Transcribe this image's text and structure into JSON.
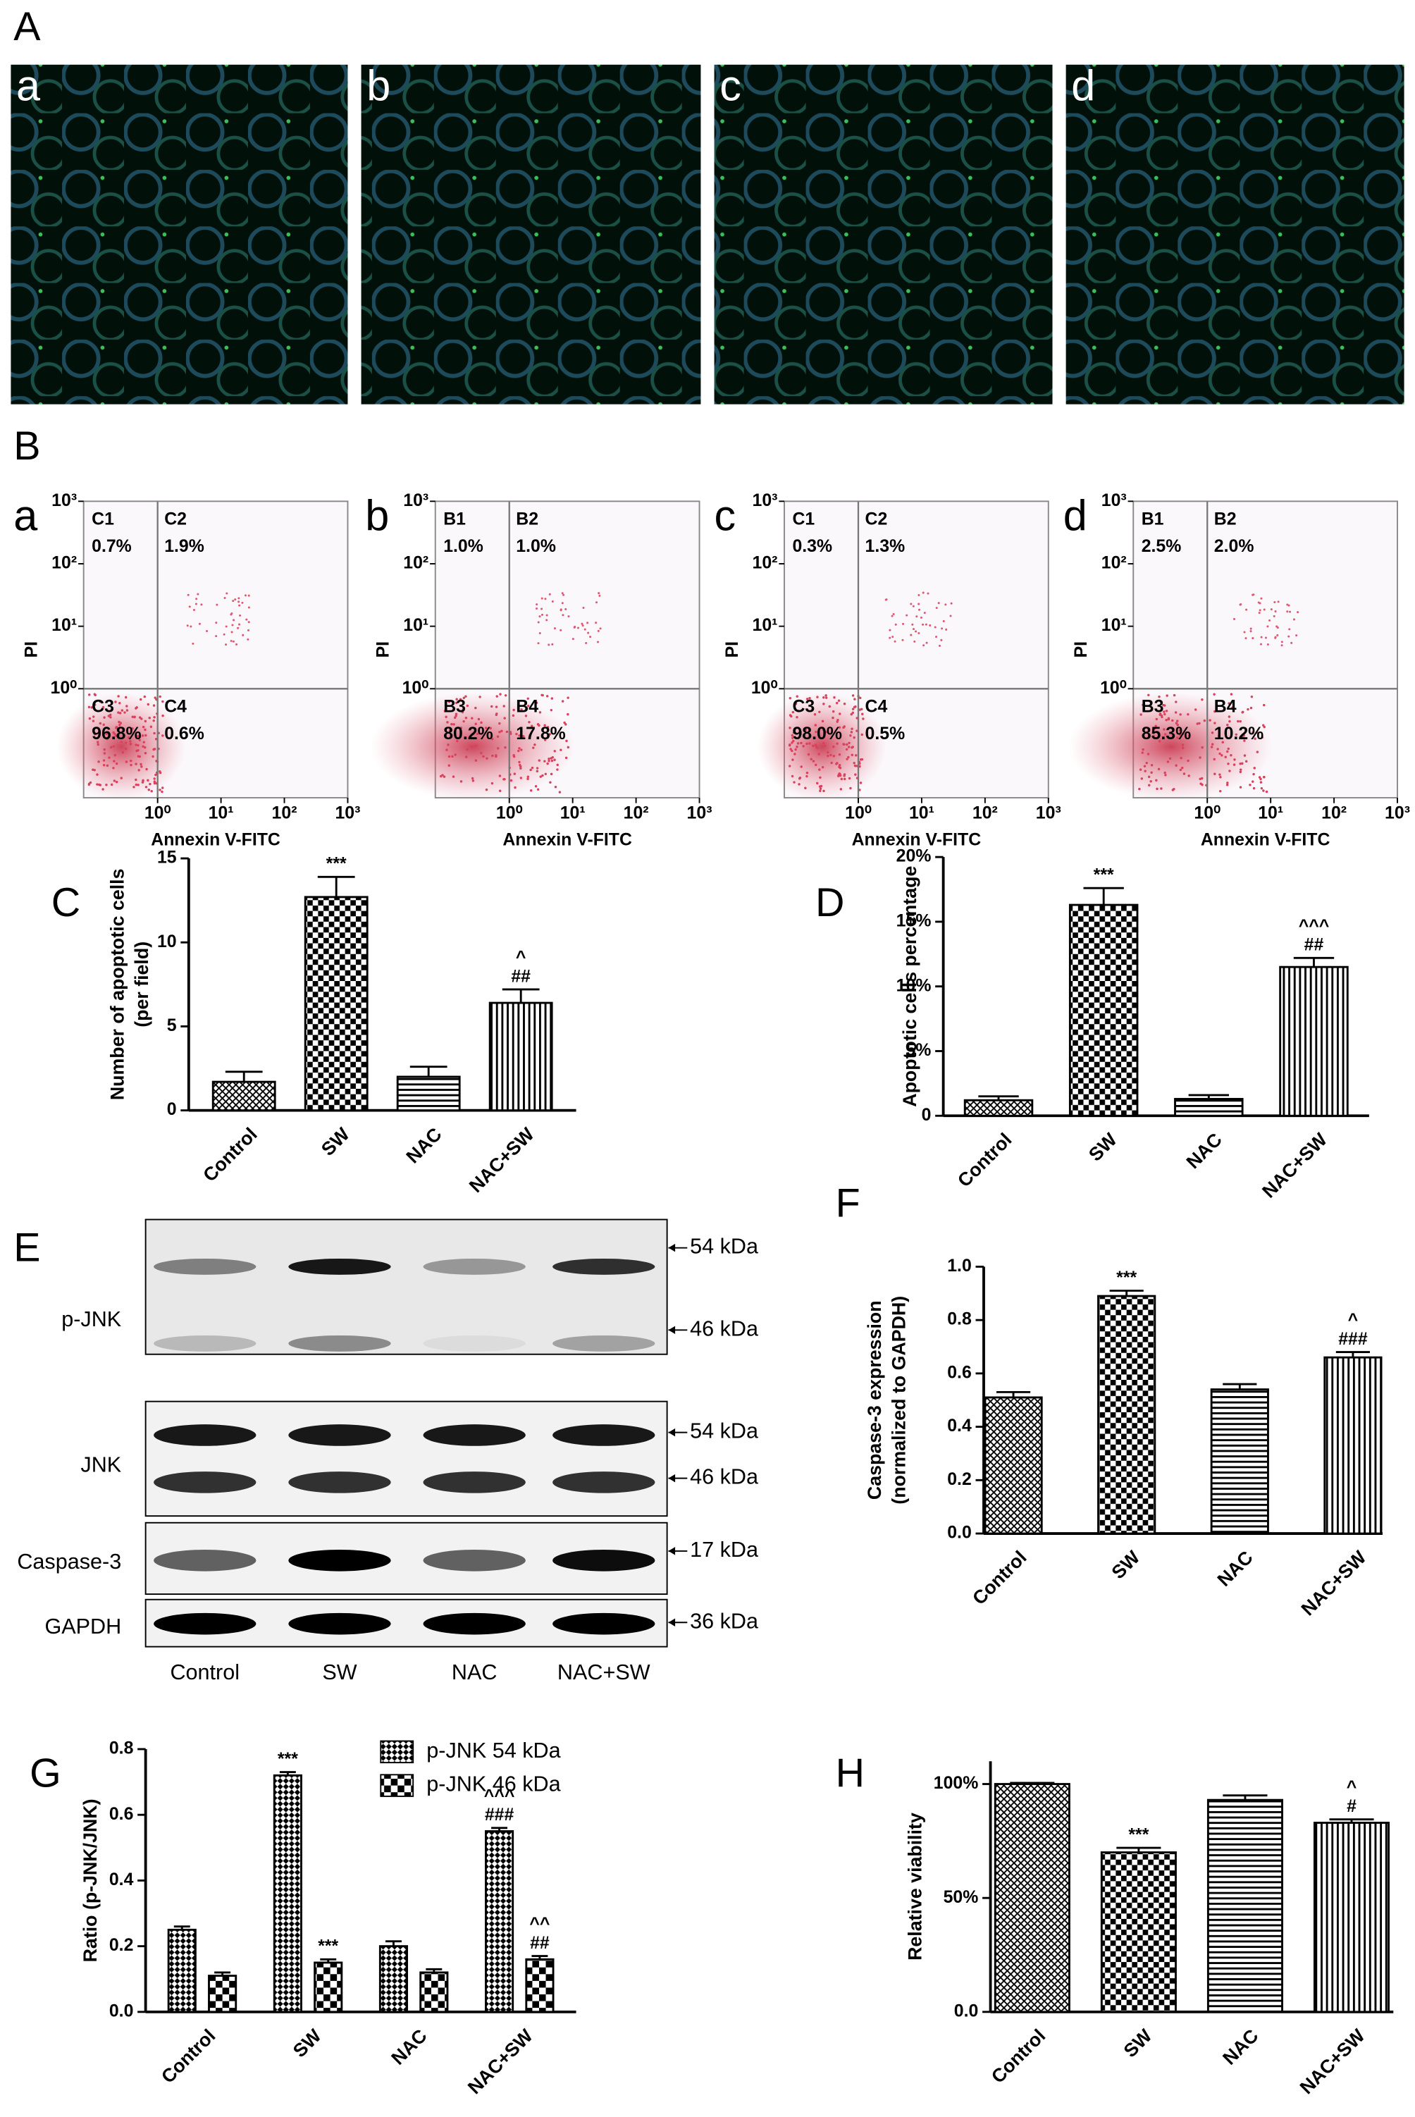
{
  "panel_A": {
    "label": "A",
    "images": [
      "a",
      "b",
      "c",
      "d"
    ]
  },
  "panel_B": {
    "label": "B",
    "log": true,
    "xlim": [
      0.068,
      1000
    ],
    "ylim": [
      0.018,
      1000
    ],
    "gates": {
      "x": 1,
      "y": 1
    },
    "xticks": [
      {
        "value": 1,
        "label": "10⁰"
      },
      {
        "value": 10,
        "label": "10¹"
      },
      {
        "value": 100,
        "label": "10²"
      },
      {
        "value": 1000,
        "label": "10³"
      }
    ],
    "yticks": [
      {
        "value": 1,
        "label": "10⁰"
      },
      {
        "value": 10,
        "label": "10¹"
      },
      {
        "value": 100,
        "label": "10²"
      },
      {
        "value": 1000,
        "label": "10³"
      }
    ],
    "plots": [
      {
        "label": "a",
        "xlabel": "Annexin V-FITC",
        "ylabel": "PI",
        "quadrants": [
          {
            "name": "C1",
            "percent": "0.7%"
          },
          {
            "name": "C2",
            "percent": "1.9%"
          },
          {
            "name": "C3",
            "percent": "96.8%"
          },
          {
            "name": "C4",
            "percent": "0.6%"
          }
        ]
      },
      {
        "label": "b",
        "xlabel": "Annexin V-FITC",
        "ylabel": "PI",
        "quadrants": [
          {
            "name": "B1",
            "percent": "1.0%"
          },
          {
            "name": "B2",
            "percent": "1.0%"
          },
          {
            "name": "B3",
            "percent": "80.2%"
          },
          {
            "name": "B4",
            "percent": "17.8%"
          }
        ]
      },
      {
        "label": "c",
        "xlabel": "Annexin V-FITC",
        "ylabel": "PI",
        "quadrants": [
          {
            "name": "C1",
            "percent": "0.3%"
          },
          {
            "name": "C2",
            "percent": "1.3%"
          },
          {
            "name": "C3",
            "percent": "98.0%"
          },
          {
            "name": "C4",
            "percent": "0.5%"
          }
        ]
      },
      {
        "label": "d",
        "xlabel": "Annexin V-FITC",
        "ylabel": "PI",
        "quadrants": [
          {
            "name": "B1",
            "percent": "2.5%"
          },
          {
            "name": "B2",
            "percent": "2.0%"
          },
          {
            "name": "B3",
            "percent": "85.3%"
          },
          {
            "name": "B4",
            "percent": "10.2%"
          }
        ]
      }
    ]
  },
  "panel_E": {
    "label": "E",
    "lanes": [
      "Control",
      "SW",
      "NAC",
      "NAC+SW"
    ],
    "rows": [
      {
        "name": "p-JNK",
        "markers": [
          "54 kDa",
          "46 kDa"
        ]
      },
      {
        "name": "JNK",
        "markers": [
          "54 kDa",
          "46 kDa"
        ]
      },
      {
        "name": "Caspase-3",
        "markers": [
          "17 kDa"
        ]
      },
      {
        "name": "GAPDH",
        "markers": [
          "36 kDa"
        ]
      }
    ]
  },
  "chart_data": [
    {
      "type": "bar",
      "panel": "C",
      "ylabel": [
        "Number of apoptotic cells",
        "(per field)"
      ],
      "categories": [
        "Control",
        "SW",
        "NAC",
        "NAC+SW"
      ],
      "values": [
        1.7,
        12.7,
        2.0,
        6.4
      ],
      "errors": [
        0.6,
        1.2,
        0.6,
        0.8
      ],
      "annotations": [
        null,
        [
          "***"
        ],
        null,
        [
          "^",
          "##"
        ]
      ],
      "ylim": [
        0,
        15
      ],
      "yticks": [
        0,
        5,
        10,
        15
      ]
    },
    {
      "type": "bar",
      "panel": "D",
      "ylabel": "Apoptotic cells percentage",
      "categories": [
        "Control",
        "SW",
        "NAC",
        "NAC+SW"
      ],
      "values": [
        1.2,
        16.3,
        1.3,
        11.5
      ],
      "errors": [
        0.3,
        1.3,
        0.3,
        0.7
      ],
      "annotations": [
        null,
        [
          "***"
        ],
        null,
        [
          "^^^",
          "##"
        ]
      ],
      "ylim": [
        0,
        20
      ],
      "yticks": [
        0,
        {
          "value": 5,
          "label": "5%"
        },
        {
          "value": 10,
          "label": "10%"
        },
        {
          "value": 15,
          "label": "15%"
        },
        {
          "value": 20,
          "label": "20%"
        }
      ]
    },
    {
      "type": "bar",
      "panel": "F",
      "ylabel": [
        "Caspase-3 expression",
        "(normalized to GAPDH)"
      ],
      "categories": [
        "Control",
        "SW",
        "NAC",
        "NAC+SW"
      ],
      "values": [
        0.51,
        0.89,
        0.54,
        0.66
      ],
      "errors": [
        0.02,
        0.02,
        0.02,
        0.02
      ],
      "annotations": [
        null,
        [
          "***"
        ],
        null,
        [
          "^",
          "###"
        ]
      ],
      "ylim": [
        0,
        1.0
      ],
      "yticks": [
        {
          "value": 0,
          "label": "0.0"
        },
        0.2,
        0.4,
        0.6,
        0.8,
        {
          "value": 1.0,
          "label": "1.0"
        }
      ]
    },
    {
      "type": "bar",
      "panel": "G",
      "ylabel": "Ratio (p-JNK/JNK)",
      "categories": [
        "Control",
        "SW",
        "NAC",
        "NAC+SW"
      ],
      "legend": "top-right",
      "series": [
        {
          "name": "p-JNK 54 kDa",
          "values": [
            0.25,
            0.72,
            0.2,
            0.55
          ],
          "errors": [
            0.01,
            0.01,
            0.015,
            0.01
          ],
          "annotations": [
            null,
            [
              "***"
            ],
            null,
            [
              "^^^",
              "###"
            ]
          ]
        },
        {
          "name": "p-JNK 46 kDa",
          "values": [
            0.11,
            0.15,
            0.12,
            0.16
          ],
          "errors": [
            0.01,
            0.01,
            0.01,
            0.01
          ],
          "annotations": [
            null,
            [
              "***"
            ],
            null,
            [
              "^^",
              "##"
            ]
          ]
        }
      ],
      "ylim": [
        0,
        0.8
      ],
      "yticks": [
        {
          "value": 0,
          "label": "0.0"
        },
        0.2,
        0.4,
        0.6,
        0.8
      ]
    },
    {
      "type": "bar",
      "panel": "H",
      "ylabel": "Relative viability",
      "categories": [
        "Control",
        "SW",
        "NAC",
        "NAC+SW"
      ],
      "values": [
        100,
        70,
        93,
        83
      ],
      "errors": [
        0.5,
        2,
        2,
        1.5
      ],
      "annotations": [
        null,
        [
          "***"
        ],
        null,
        [
          "^",
          "#"
        ]
      ],
      "ylim": [
        0,
        110
      ],
      "yticks": [
        {
          "value": 0,
          "label": "0.0"
        },
        {
          "value": 50,
          "label": "50%"
        },
        {
          "value": 100,
          "label": "100%"
        }
      ]
    }
  ]
}
